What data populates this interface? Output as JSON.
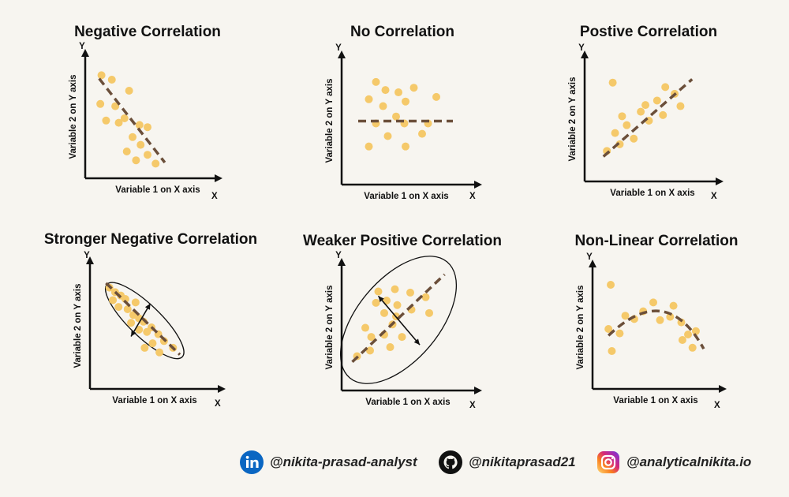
{
  "labels": {
    "x_axis": "Variable 1 on X axis",
    "y_axis": "Variable 2 on Y axis",
    "x_letter": "X",
    "y_letter": "Y"
  },
  "colors": {
    "dot": "#f5c96a",
    "trend": "#6b4f3a",
    "axis": "#111111",
    "bg": "#f7f5f0"
  },
  "panels": [
    {
      "title": "Negative Correlation",
      "pattern": "negative",
      "fit": "linear",
      "points": [
        [
          1,
          8.9
        ],
        [
          1.9,
          8.5
        ],
        [
          3.4,
          7.5
        ],
        [
          0.9,
          6.3
        ],
        [
          2.2,
          6.1
        ],
        [
          3,
          5
        ],
        [
          1.4,
          4.8
        ],
        [
          2.5,
          4.6
        ],
        [
          4.3,
          4.4
        ],
        [
          5,
          4.2
        ],
        [
          3.7,
          3.3
        ],
        [
          4.4,
          2.6
        ],
        [
          3.2,
          2
        ],
        [
          5,
          1.7
        ],
        [
          4,
          1.2
        ],
        [
          5.7,
          0.9
        ]
      ],
      "trend": [
        [
          0.8,
          8.6
        ],
        [
          6.5,
          1
        ]
      ],
      "ellipse": null,
      "arrow": null
    },
    {
      "title": "No Correlation",
      "pattern": "none",
      "fit": "linear",
      "points": [
        [
          2.5,
          8.5
        ],
        [
          3.3,
          7.8
        ],
        [
          1.9,
          7
        ],
        [
          4.4,
          7.6
        ],
        [
          5.7,
          8
        ],
        [
          7.6,
          7.2
        ],
        [
          3.1,
          6.4
        ],
        [
          5,
          6.8
        ],
        [
          4.2,
          5.5
        ],
        [
          2.5,
          4.9
        ],
        [
          4.9,
          4.9
        ],
        [
          6.9,
          4.9
        ],
        [
          3.5,
          3.8
        ],
        [
          6.4,
          4
        ],
        [
          1.9,
          2.9
        ],
        [
          5,
          2.9
        ]
      ],
      "trend": [
        [
          1,
          5.1
        ],
        [
          9,
          5.1
        ]
      ],
      "ellipse": null,
      "arrow": null
    },
    {
      "title": "Postive Correlation",
      "pattern": "positive",
      "fit": "linear",
      "points": [
        [
          2,
          8.4
        ],
        [
          6.5,
          8
        ],
        [
          7.3,
          7.4
        ],
        [
          5.8,
          6.8
        ],
        [
          4.8,
          6.4
        ],
        [
          7.8,
          6.3
        ],
        [
          4.4,
          5.8
        ],
        [
          6.3,
          5.5
        ],
        [
          2.8,
          5.4
        ],
        [
          5.1,
          5
        ],
        [
          3.2,
          4.6
        ],
        [
          2.2,
          3.9
        ],
        [
          3.8,
          3.4
        ],
        [
          2.6,
          2.9
        ],
        [
          1.5,
          2.3
        ]
      ],
      "trend": [
        [
          1.2,
          1.8
        ],
        [
          8.8,
          8.7
        ]
      ],
      "ellipse": null,
      "arrow": null
    },
    {
      "title": "Stronger Negative Correlation",
      "pattern": "stronger-negative",
      "fit": "linear",
      "points": [
        [
          1.3,
          8.5
        ],
        [
          1.8,
          8.1
        ],
        [
          2.3,
          7.8
        ],
        [
          1.6,
          7.4
        ],
        [
          2.7,
          7.5
        ],
        [
          3.6,
          7.2
        ],
        [
          2.1,
          6.8
        ],
        [
          2.9,
          6.6
        ],
        [
          3.4,
          6.1
        ],
        [
          3.9,
          5.8
        ],
        [
          4.3,
          5.5
        ],
        [
          3.2,
          5.4
        ],
        [
          5,
          5
        ],
        [
          3.9,
          4.8
        ],
        [
          4.6,
          4.6
        ],
        [
          5.6,
          4.4
        ],
        [
          5.1,
          3.6
        ],
        [
          6.1,
          3.8
        ],
        [
          4.4,
          3.2
        ],
        [
          5.7,
          2.8
        ],
        [
          6.9,
          3.2
        ]
      ],
      "trend": [
        [
          1,
          8.9
        ],
        [
          7.5,
          2.6
        ]
      ],
      "ellipse": {
        "cx": 4.4,
        "cy": 5.6,
        "rx": 4.6,
        "ry": 1.4,
        "angle": 44
      },
      "arrow": [
        [
          3.2,
          4.2
        ],
        [
          4.9,
          7.1
        ]
      ]
    },
    {
      "title": "Weaker Positive Correlation",
      "pattern": "weaker-positive",
      "fit": "linear",
      "points": [
        [
          4.1,
          8.5
        ],
        [
          2.7,
          8.3
        ],
        [
          5.4,
          8.2
        ],
        [
          3.4,
          7.5
        ],
        [
          6.7,
          7.8
        ],
        [
          2.5,
          7.3
        ],
        [
          4.3,
          7.1
        ],
        [
          5.5,
          6.7
        ],
        [
          3.2,
          6.4
        ],
        [
          7,
          6.4
        ],
        [
          4.2,
          6.1
        ],
        [
          1.6,
          5.1
        ],
        [
          3.9,
          5.4
        ],
        [
          2.1,
          4.3
        ],
        [
          3.2,
          4.5
        ],
        [
          4.7,
          4.3
        ],
        [
          2,
          3.1
        ],
        [
          3.7,
          3.4
        ],
        [
          0.9,
          2.6
        ]
      ],
      "trend": [
        [
          0.5,
          2.1
        ],
        [
          8.3,
          9.8
        ]
      ],
      "ellipse": {
        "cx": 4.4,
        "cy": 5.8,
        "rx": 6.4,
        "ry": 3.6,
        "angle": -50
      },
      "arrow": [
        [
          2.7,
          7.9
        ],
        [
          6.2,
          3.6
        ]
      ]
    },
    {
      "title": "Non-Linear Correlation",
      "pattern": "non-linear",
      "fit": "curve",
      "points": [
        [
          1.2,
          9
        ],
        [
          5,
          7.4
        ],
        [
          6.8,
          7.1
        ],
        [
          4.1,
          6.6
        ],
        [
          2.5,
          6.2
        ],
        [
          3.3,
          5.9
        ],
        [
          5.6,
          5.8
        ],
        [
          6.5,
          6.1
        ],
        [
          7.5,
          5.6
        ],
        [
          1,
          5
        ],
        [
          2,
          4.6
        ],
        [
          8.1,
          4.5
        ],
        [
          8.8,
          4.8
        ],
        [
          7.6,
          4
        ],
        [
          1.3,
          3
        ],
        [
          8.5,
          3.3
        ]
      ],
      "trend": [
        [
          1,
          4.4
        ],
        [
          5.7,
          6.6
        ],
        [
          9.5,
          3.2
        ]
      ],
      "ellipse": null,
      "arrow": null
    }
  ],
  "footer": {
    "linkedin": {
      "icon": "linkedin-icon",
      "handle": "@nikita-prasad-analyst"
    },
    "github": {
      "icon": "github-icon",
      "handle": "@nikitaprasad21"
    },
    "instagram": {
      "icon": "instagram-icon",
      "handle": "@analyticalnikita.io"
    }
  }
}
